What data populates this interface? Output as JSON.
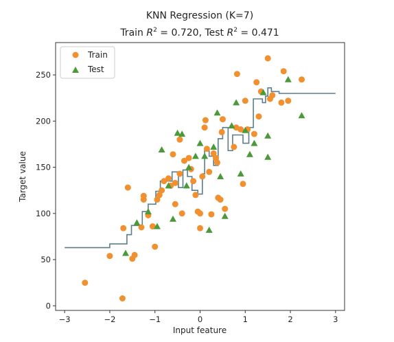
{
  "chart_data": {
    "type": "scatter",
    "title_line1": "KNN Regression (K=7)",
    "title_line2_train_prefix": "Train ",
    "title_line2_train_r2": "0.720",
    "title_line2_sep": ",  Test ",
    "title_line2_test_r2": "0.471",
    "xlabel": "Input feature",
    "ylabel": "Target value",
    "xlim": [
      -3.2,
      3.2
    ],
    "ylim": [
      -5,
      285
    ],
    "xticks": [
      -3,
      -2,
      -1,
      0,
      1,
      2,
      3
    ],
    "xtick_labels": [
      "−3",
      "−2",
      "−1",
      "0",
      "1",
      "2",
      "3"
    ],
    "yticks": [
      0,
      50,
      100,
      150,
      200,
      250
    ],
    "ytick_labels": [
      "0",
      "50",
      "100",
      "150",
      "200",
      "250"
    ],
    "grid": false,
    "legend_position": "top-left",
    "colors": {
      "train": "#f0902f",
      "test": "#4a9a3a",
      "prediction": "#5a7d8c"
    },
    "series": [
      {
        "name": "Train",
        "marker": "circle",
        "points": [
          [
            -2.55,
            25
          ],
          [
            -1.72,
            8
          ],
          [
            -2.0,
            54
          ],
          [
            -1.6,
            128
          ],
          [
            -1.7,
            84
          ],
          [
            -1.5,
            51
          ],
          [
            -1.45,
            55
          ],
          [
            -1.3,
            85
          ],
          [
            -1.25,
            119
          ],
          [
            -1.25,
            115
          ],
          [
            -1.15,
            98
          ],
          [
            -1.0,
            64
          ],
          [
            -1.05,
            86
          ],
          [
            -0.95,
            115
          ],
          [
            -0.9,
            120
          ],
          [
            -0.85,
            125
          ],
          [
            -0.8,
            135
          ],
          [
            -0.7,
            138
          ],
          [
            -0.65,
            130
          ],
          [
            -0.6,
            164
          ],
          [
            -0.55,
            110
          ],
          [
            -0.55,
            133
          ],
          [
            -0.45,
            180
          ],
          [
            -0.45,
            143
          ],
          [
            -0.4,
            100
          ],
          [
            -0.35,
            157
          ],
          [
            -0.25,
            160
          ],
          [
            -0.2,
            148
          ],
          [
            -0.15,
            135
          ],
          [
            -0.1,
            120
          ],
          [
            -0.05,
            102
          ],
          [
            0.0,
            100
          ],
          [
            0.0,
            84
          ],
          [
            0.05,
            140
          ],
          [
            0.1,
            193
          ],
          [
            0.12,
            201
          ],
          [
            0.15,
            170
          ],
          [
            0.2,
            145
          ],
          [
            0.25,
            99
          ],
          [
            0.3,
            165
          ],
          [
            0.35,
            160
          ],
          [
            0.38,
            155
          ],
          [
            0.4,
            117
          ],
          [
            0.45,
            115
          ],
          [
            0.48,
            188
          ],
          [
            0.5,
            202
          ],
          [
            0.55,
            105
          ],
          [
            0.75,
            172
          ],
          [
            0.8,
            193
          ],
          [
            0.82,
            251
          ],
          [
            0.9,
            191
          ],
          [
            1.0,
            222
          ],
          [
            1.05,
            191
          ],
          [
            1.2,
            186
          ],
          [
            1.25,
            242
          ],
          [
            1.35,
            232
          ],
          [
            1.5,
            268
          ],
          [
            1.55,
            224
          ],
          [
            1.6,
            228
          ],
          [
            1.8,
            220
          ],
          [
            1.85,
            254
          ],
          [
            1.95,
            222
          ],
          [
            2.25,
            245
          ],
          [
            0.95,
            132
          ],
          [
            1.3,
            205
          ]
        ]
      },
      {
        "name": "Test",
        "marker": "triangle",
        "points": [
          [
            -1.65,
            57
          ],
          [
            -1.4,
            90
          ],
          [
            -1.15,
            102
          ],
          [
            -0.95,
            86
          ],
          [
            -0.85,
            169
          ],
          [
            -0.7,
            130
          ],
          [
            -0.6,
            94
          ],
          [
            -0.5,
            187
          ],
          [
            -0.4,
            186
          ],
          [
            -0.3,
            130
          ],
          [
            -0.25,
            150
          ],
          [
            -0.1,
            162
          ],
          [
            0.0,
            176
          ],
          [
            0.1,
            162
          ],
          [
            0.2,
            82
          ],
          [
            0.3,
            172
          ],
          [
            0.38,
            209
          ],
          [
            0.45,
            140
          ],
          [
            0.55,
            97
          ],
          [
            0.7,
            195
          ],
          [
            0.8,
            220
          ],
          [
            0.9,
            143
          ],
          [
            1.0,
            190
          ],
          [
            1.1,
            164
          ],
          [
            1.2,
            176
          ],
          [
            1.4,
            231
          ],
          [
            1.5,
            161
          ],
          [
            1.5,
            184
          ],
          [
            1.95,
            245
          ],
          [
            2.25,
            206
          ]
        ]
      },
      {
        "name": "",
        "type": "step",
        "points": [
          [
            -3.0,
            63
          ],
          [
            -2.0,
            63
          ],
          [
            -2.0,
            67
          ],
          [
            -1.62,
            67
          ],
          [
            -1.62,
            77
          ],
          [
            -1.52,
            77
          ],
          [
            -1.52,
            87
          ],
          [
            -1.28,
            87
          ],
          [
            -1.28,
            102
          ],
          [
            -1.15,
            102
          ],
          [
            -1.15,
            110
          ],
          [
            -0.98,
            110
          ],
          [
            -0.98,
            124
          ],
          [
            -0.88,
            124
          ],
          [
            -0.88,
            135
          ],
          [
            -0.62,
            135
          ],
          [
            -0.62,
            145
          ],
          [
            -0.48,
            145
          ],
          [
            -0.48,
            128
          ],
          [
            -0.38,
            128
          ],
          [
            -0.38,
            147
          ],
          [
            -0.28,
            147
          ],
          [
            -0.28,
            140
          ],
          [
            -0.18,
            140
          ],
          [
            -0.18,
            125
          ],
          [
            -0.05,
            125
          ],
          [
            -0.05,
            121
          ],
          [
            0.05,
            121
          ],
          [
            0.05,
            143
          ],
          [
            0.1,
            143
          ],
          [
            0.1,
            170
          ],
          [
            0.2,
            170
          ],
          [
            0.2,
            162
          ],
          [
            0.3,
            162
          ],
          [
            0.3,
            152
          ],
          [
            0.4,
            152
          ],
          [
            0.4,
            181
          ],
          [
            0.5,
            181
          ],
          [
            0.5,
            193
          ],
          [
            0.62,
            193
          ],
          [
            0.62,
            168
          ],
          [
            0.72,
            168
          ],
          [
            0.72,
            185
          ],
          [
            0.95,
            185
          ],
          [
            0.95,
            176
          ],
          [
            1.08,
            176
          ],
          [
            1.08,
            193
          ],
          [
            1.18,
            193
          ],
          [
            1.18,
            224
          ],
          [
            1.38,
            224
          ],
          [
            1.38,
            220
          ],
          [
            1.45,
            220
          ],
          [
            1.45,
            227
          ],
          [
            1.5,
            227
          ],
          [
            1.5,
            236
          ],
          [
            1.58,
            236
          ],
          [
            1.58,
            232
          ],
          [
            1.75,
            232
          ],
          [
            1.75,
            230
          ],
          [
            3.0,
            230
          ]
        ]
      }
    ]
  }
}
